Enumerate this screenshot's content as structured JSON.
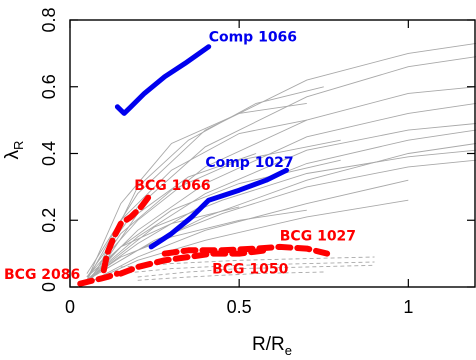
{
  "chart_data": {
    "type": "line",
    "xlabel": "R/R",
    "xlabel_sub": "e",
    "ylabel": "λ",
    "ylabel_sub": "R",
    "xlim": [
      0,
      1.2
    ],
    "ylim": [
      0,
      0.8
    ],
    "x_ticks": [
      0,
      0.5,
      1
    ],
    "x_tick_labels": [
      "0",
      "0.5",
      "1"
    ],
    "y_ticks": [
      0,
      0.2,
      0.4,
      0.6,
      0.8
    ],
    "y_tick_labels": [
      "0",
      "0.2",
      "0.4",
      "0.6",
      "0.8"
    ],
    "grid": false,
    "series": [
      {
        "name": "Comp 1066",
        "color": "#0000ee",
        "style": "solid",
        "x": [
          0.14,
          0.16,
          0.18,
          0.22,
          0.28,
          0.34,
          0.41
        ],
        "y": [
          0.54,
          0.52,
          0.54,
          0.58,
          0.63,
          0.67,
          0.72
        ],
        "label_at": [
          0.41,
          0.735
        ]
      },
      {
        "name": "Comp 1027",
        "color": "#0000ee",
        "style": "solid",
        "x": [
          0.24,
          0.3,
          0.36,
          0.41,
          0.5,
          0.58,
          0.64
        ],
        "y": [
          0.12,
          0.16,
          0.21,
          0.26,
          0.29,
          0.32,
          0.35
        ],
        "label_at": [
          0.4,
          0.36
        ]
      },
      {
        "name": "BCG 1066",
        "color": "#ff0000",
        "style": "dashed",
        "x": [
          0.1,
          0.11,
          0.13,
          0.15,
          0.18,
          0.21,
          0.24
        ],
        "y": [
          0.05,
          0.1,
          0.15,
          0.19,
          0.21,
          0.24,
          0.28
        ],
        "label_at": [
          0.19,
          0.29
        ]
      },
      {
        "name": "BCG 1027",
        "color": "#ff0000",
        "style": "dashed",
        "x": [
          0.28,
          0.35,
          0.45,
          0.55,
          0.62,
          0.7,
          0.76
        ],
        "y": [
          0.1,
          0.11,
          0.11,
          0.115,
          0.12,
          0.115,
          0.1
        ],
        "label_at": [
          0.62,
          0.14
        ]
      },
      {
        "name": "BCG 1050",
        "color": "#ff0000",
        "style": "dashed",
        "x": [
          0.15,
          0.2,
          0.28,
          0.35,
          0.42,
          0.5,
          0.58
        ],
        "y": [
          0.04,
          0.06,
          0.08,
          0.09,
          0.1,
          0.1,
          0.11
        ],
        "label_at": [
          0.42,
          0.04
        ]
      },
      {
        "name": "BCG 2086",
        "color": "#ff0000",
        "style": "dashed",
        "x": [
          0.03,
          0.05,
          0.07,
          0.09,
          0.11,
          0.14
        ],
        "y": [
          0.01,
          0.015,
          0.02,
          0.025,
          0.03,
          0.04
        ],
        "label_at": [
          0.0,
          0.0
        ]
      }
    ],
    "background": {
      "color": "#a9a9a9",
      "curves": [
        {
          "x": [
            0.05,
            0.2,
            0.4,
            0.7,
            1.0,
            1.2
          ],
          "y": [
            0.04,
            0.28,
            0.47,
            0.62,
            0.7,
            0.73
          ]
        },
        {
          "x": [
            0.05,
            0.2,
            0.4,
            0.7,
            1.0,
            1.2
          ],
          "y": [
            0.03,
            0.24,
            0.42,
            0.57,
            0.66,
            0.69
          ]
        },
        {
          "x": [
            0.05,
            0.2,
            0.4,
            0.7,
            1.0,
            1.2
          ],
          "y": [
            0.03,
            0.2,
            0.36,
            0.5,
            0.58,
            0.6
          ]
        },
        {
          "x": [
            0.05,
            0.2,
            0.4,
            0.7,
            1.0,
            1.2
          ],
          "y": [
            0.02,
            0.17,
            0.31,
            0.45,
            0.52,
            0.55
          ]
        },
        {
          "x": [
            0.05,
            0.2,
            0.4,
            0.7,
            1.0,
            1.2
          ],
          "y": [
            0.02,
            0.15,
            0.28,
            0.41,
            0.47,
            0.49
          ]
        },
        {
          "x": [
            0.05,
            0.2,
            0.4,
            0.7,
            1.0,
            1.2
          ],
          "y": [
            0.02,
            0.13,
            0.25,
            0.37,
            0.44,
            0.47
          ]
        },
        {
          "x": [
            0.05,
            0.2,
            0.4,
            0.7,
            1.0,
            1.2
          ],
          "y": [
            0.02,
            0.11,
            0.21,
            0.32,
            0.4,
            0.43
          ]
        },
        {
          "x": [
            0.05,
            0.2,
            0.4,
            0.7,
            1.0
          ],
          "y": [
            0.01,
            0.09,
            0.17,
            0.25,
            0.32
          ]
        },
        {
          "x": [
            0.05,
            0.2,
            0.4,
            0.7,
            1.0
          ],
          "y": [
            0.01,
            0.08,
            0.14,
            0.21,
            0.26
          ]
        },
        {
          "x": [
            0.05,
            0.15,
            0.3,
            0.5,
            0.7
          ],
          "y": [
            0.02,
            0.25,
            0.43,
            0.52,
            0.55
          ]
        },
        {
          "x": [
            0.05,
            0.15,
            0.3,
            0.5,
            0.7
          ],
          "y": [
            0.02,
            0.2,
            0.35,
            0.46,
            0.5
          ]
        },
        {
          "x": [
            0.05,
            0.15,
            0.3,
            0.5,
            0.8
          ],
          "y": [
            0.01,
            0.16,
            0.29,
            0.38,
            0.44
          ]
        },
        {
          "x": [
            0.05,
            0.15,
            0.3,
            0.5,
            0.8
          ],
          "y": [
            0.01,
            0.12,
            0.23,
            0.31,
            0.38
          ]
        },
        {
          "x": [
            0.08,
            0.2,
            0.35,
            0.55,
            0.75
          ],
          "y": [
            0.05,
            0.3,
            0.44,
            0.55,
            0.6
          ]
        },
        {
          "x": [
            0.08,
            0.2,
            0.35,
            0.55
          ],
          "y": [
            0.04,
            0.22,
            0.33,
            0.4
          ]
        },
        {
          "x": [
            0.1,
            0.25,
            0.45,
            0.7,
            1.0,
            1.2
          ],
          "y": [
            0.06,
            0.18,
            0.26,
            0.34,
            0.39,
            0.41
          ]
        },
        {
          "x": [
            0.1,
            0.25,
            0.45,
            0.7,
            1.0,
            1.2
          ],
          "y": [
            0.05,
            0.14,
            0.22,
            0.3,
            0.36,
            0.38
          ]
        },
        {
          "x": [
            0.05,
            0.15,
            0.3,
            0.5
          ],
          "y": [
            0.03,
            0.12,
            0.19,
            0.24
          ]
        },
        {
          "x": [
            0.05,
            0.15,
            0.3,
            0.5,
            0.7
          ],
          "y": [
            0.02,
            0.09,
            0.15,
            0.2,
            0.23
          ]
        }
      ],
      "dashed_curves": [
        {
          "x": [
            0.15,
            0.3,
            0.5,
            0.7,
            0.9
          ],
          "y": [
            0.06,
            0.07,
            0.08,
            0.085,
            0.09
          ]
        },
        {
          "x": [
            0.15,
            0.3,
            0.5,
            0.7,
            0.9
          ],
          "y": [
            0.04,
            0.055,
            0.065,
            0.07,
            0.075
          ]
        },
        {
          "x": [
            0.2,
            0.35,
            0.5,
            0.7,
            0.9
          ],
          "y": [
            0.03,
            0.045,
            0.055,
            0.06,
            0.065
          ]
        },
        {
          "x": [
            0.2,
            0.35,
            0.55,
            0.75
          ],
          "y": [
            0.02,
            0.03,
            0.04,
            0.045
          ]
        }
      ]
    }
  }
}
